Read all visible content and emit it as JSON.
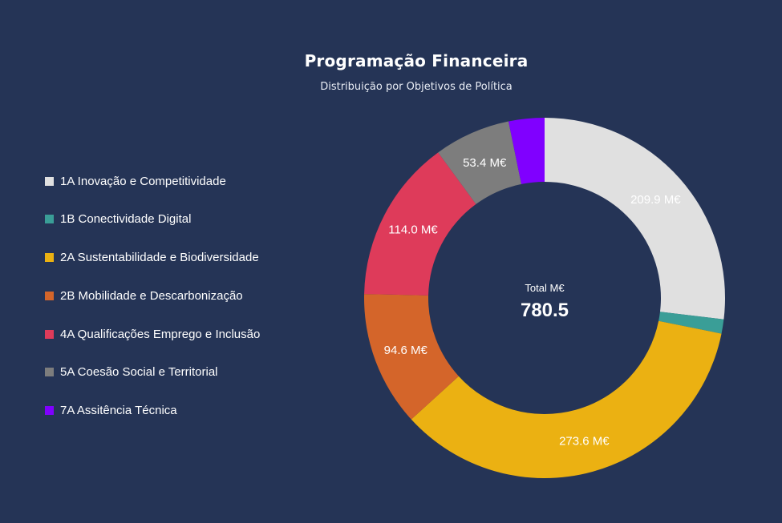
{
  "chart_data": {
    "type": "pie",
    "title": "Programação Financeira",
    "subtitle": "Distribuição por Objetivos de Política",
    "unit_suffix": " M€",
    "center_label": "Total M€",
    "center_value": "780.5",
    "legend_position": "left",
    "categories": [
      "1A Inovação e Competitividade",
      "1B Conectividade Digital",
      "2A Sustentabilidade e Biodiversidade",
      "2B Mobilidade e Descarbonização",
      "4A Qualificações Emprego e Inclusão",
      "5A Coesão Social e Territorial",
      "7A Assitência Técnica"
    ],
    "values": [
      209.9,
      10.0,
      273.6,
      94.6,
      114.0,
      53.4,
      25.0
    ],
    "data_labels": [
      "209.9 M€",
      "",
      "273.6 M€",
      "94.6 M€",
      "114.0 M€",
      "53.4 M€",
      ""
    ],
    "colors": [
      "#e0e0e0",
      "#3a9e97",
      "#ebb112",
      "#d4652a",
      "#de3b5a",
      "#7d7d7d",
      "#8000ff"
    ]
  }
}
